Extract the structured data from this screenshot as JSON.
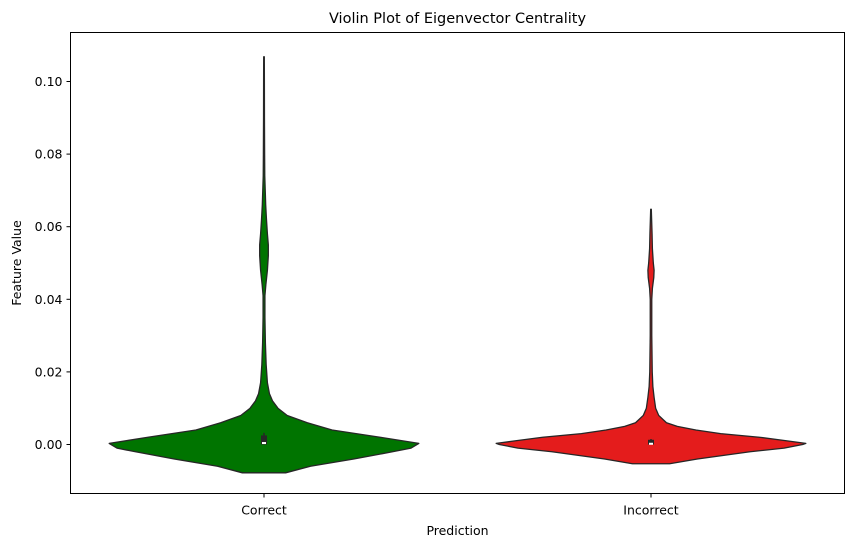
{
  "chart_data": {
    "type": "violin",
    "title": "Violin Plot of Eigenvector Centrality",
    "xlabel": "Prediction",
    "ylabel": "Feature Value",
    "categories": [
      "Correct",
      "Incorrect"
    ],
    "ylim": [
      -0.0135,
      0.1135
    ],
    "yticks": [
      0.0,
      0.02,
      0.04,
      0.06,
      0.08,
      0.1
    ],
    "ytick_labels": [
      "0.00",
      "0.02",
      "0.04",
      "0.06",
      "0.08",
      "0.10"
    ],
    "grid": false,
    "series": [
      {
        "category": "Correct",
        "color": "#007400",
        "min": -0.0078,
        "max": 0.1068,
        "quartiles": [
          0.0,
          0.0004,
          0.0025
        ],
        "whiskers": [
          0.0,
          0.0032
        ],
        "density": [
          [
            -0.0078,
            0.14
          ],
          [
            -0.006,
            0.3
          ],
          [
            -0.004,
            0.58
          ],
          [
            -0.002,
            0.83
          ],
          [
            -0.001,
            0.95
          ],
          [
            0.0003,
            1.0
          ],
          [
            0.002,
            0.75
          ],
          [
            0.004,
            0.44
          ],
          [
            0.006,
            0.28
          ],
          [
            0.008,
            0.15
          ],
          [
            0.01,
            0.09
          ],
          [
            0.012,
            0.055
          ],
          [
            0.014,
            0.035
          ],
          [
            0.017,
            0.022
          ],
          [
            0.022,
            0.014
          ],
          [
            0.028,
            0.009
          ],
          [
            0.035,
            0.006
          ],
          [
            0.041,
            0.006
          ],
          [
            0.044,
            0.012
          ],
          [
            0.048,
            0.022
          ],
          [
            0.052,
            0.028
          ],
          [
            0.055,
            0.028
          ],
          [
            0.058,
            0.022
          ],
          [
            0.062,
            0.016
          ],
          [
            0.066,
            0.011
          ],
          [
            0.07,
            0.008
          ],
          [
            0.074,
            0.005
          ],
          [
            0.08,
            0.004
          ],
          [
            0.09,
            0.003
          ],
          [
            0.1,
            0.0025
          ],
          [
            0.1068,
            0.002
          ]
        ]
      },
      {
        "category": "Incorrect",
        "color": "#e41c1c",
        "min": -0.0053,
        "max": 0.0648,
        "quartiles": [
          0.0,
          0.0002,
          0.0013
        ],
        "whiskers": [
          0.0,
          0.0015
        ],
        "density": [
          [
            -0.0053,
            0.12
          ],
          [
            -0.004,
            0.3
          ],
          [
            -0.002,
            0.64
          ],
          [
            -0.001,
            0.86
          ],
          [
            0.0,
            0.98
          ],
          [
            0.0003,
            1.0
          ],
          [
            0.001,
            0.88
          ],
          [
            0.002,
            0.7
          ],
          [
            0.003,
            0.45
          ],
          [
            0.004,
            0.29
          ],
          [
            0.005,
            0.17
          ],
          [
            0.006,
            0.1
          ],
          [
            0.008,
            0.05
          ],
          [
            0.01,
            0.03
          ],
          [
            0.013,
            0.02
          ],
          [
            0.016,
            0.012
          ],
          [
            0.02,
            0.008
          ],
          [
            0.03,
            0.005
          ],
          [
            0.04,
            0.005
          ],
          [
            0.043,
            0.009
          ],
          [
            0.046,
            0.018
          ],
          [
            0.048,
            0.02
          ],
          [
            0.05,
            0.015
          ],
          [
            0.054,
            0.009
          ],
          [
            0.058,
            0.007
          ],
          [
            0.062,
            0.004
          ],
          [
            0.0648,
            0.002
          ]
        ]
      }
    ]
  }
}
